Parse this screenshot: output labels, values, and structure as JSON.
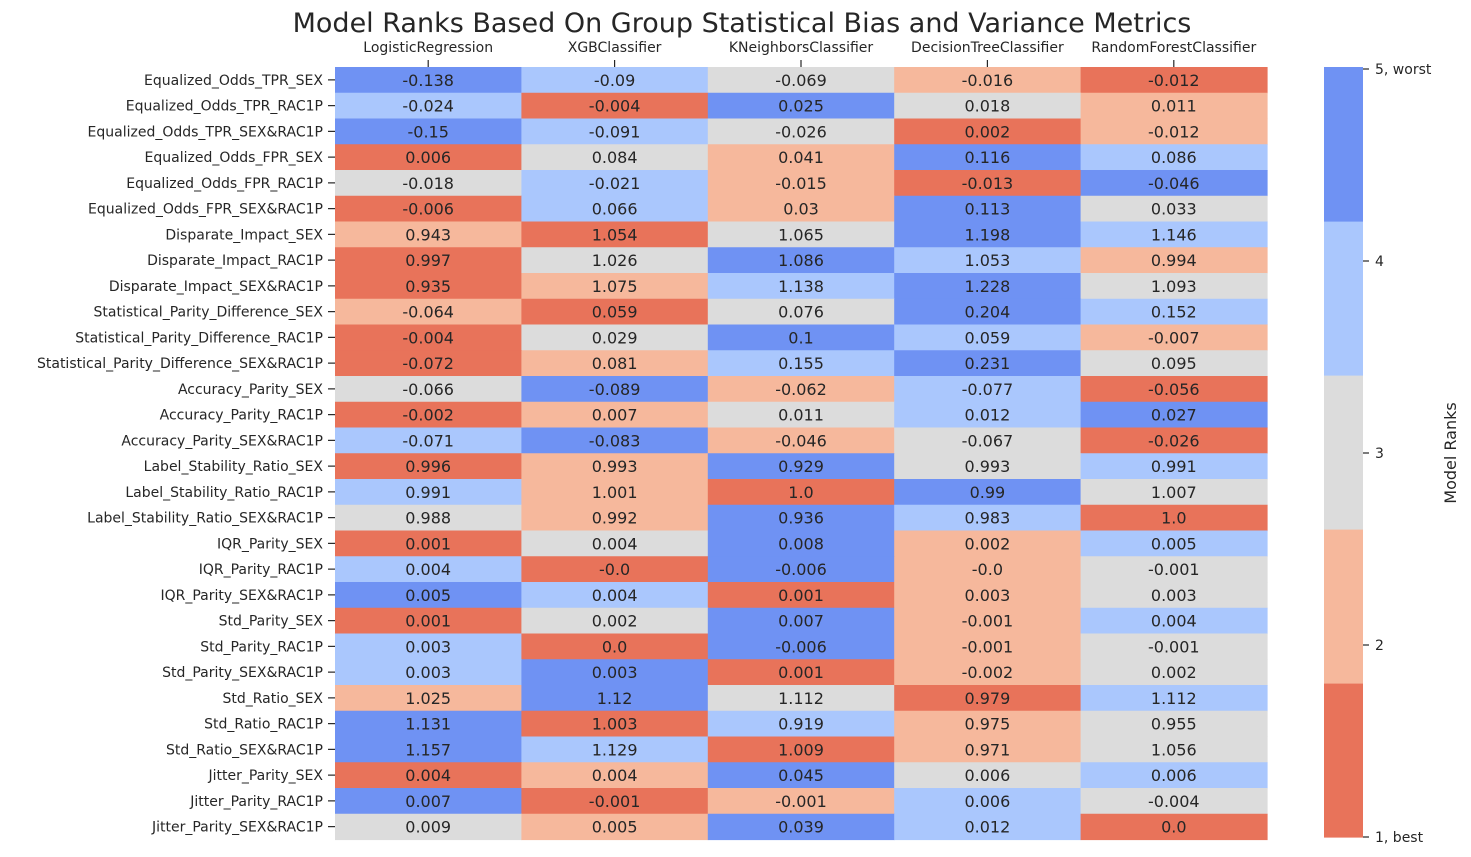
{
  "chart_data": {
    "type": "heatmap",
    "title": "Model Ranks Based On Group Statistical Bias and Variance Metrics",
    "columns": [
      "LogisticRegression",
      "XGBClassifier",
      "KNeighborsClassifier",
      "DecisionTreeClassifier",
      "RandomForestClassifier"
    ],
    "rows": [
      "Equalized_Odds_TPR_SEX",
      "Equalized_Odds_TPR_RAC1P",
      "Equalized_Odds_TPR_SEX&RAC1P",
      "Equalized_Odds_FPR_SEX",
      "Equalized_Odds_FPR_RAC1P",
      "Equalized_Odds_FPR_SEX&RAC1P",
      "Disparate_Impact_SEX",
      "Disparate_Impact_RAC1P",
      "Disparate_Impact_SEX&RAC1P",
      "Statistical_Parity_Difference_SEX",
      "Statistical_Parity_Difference_RAC1P",
      "Statistical_Parity_Difference_SEX&RAC1P",
      "Accuracy_Parity_SEX",
      "Accuracy_Parity_RAC1P",
      "Accuracy_Parity_SEX&RAC1P",
      "Label_Stability_Ratio_SEX",
      "Label_Stability_Ratio_RAC1P",
      "Label_Stability_Ratio_SEX&RAC1P",
      "IQR_Parity_SEX",
      "IQR_Parity_RAC1P",
      "IQR_Parity_SEX&RAC1P",
      "Std_Parity_SEX",
      "Std_Parity_RAC1P",
      "Std_Parity_SEX&RAC1P",
      "Std_Ratio_SEX",
      "Std_Ratio_RAC1P",
      "Std_Ratio_SEX&RAC1P",
      "Jitter_Parity_SEX",
      "Jitter_Parity_RAC1P",
      "Jitter_Parity_SEX&RAC1P"
    ],
    "values": [
      [
        "-0.138",
        "-0.09",
        "-0.069",
        "-0.016",
        "-0.012"
      ],
      [
        "-0.024",
        "-0.004",
        "0.025",
        "0.018",
        "0.011"
      ],
      [
        "-0.15",
        "-0.091",
        "-0.026",
        "0.002",
        "-0.012"
      ],
      [
        "0.006",
        "0.084",
        "0.041",
        "0.116",
        "0.086"
      ],
      [
        "-0.018",
        "-0.021",
        "-0.015",
        "-0.013",
        "-0.046"
      ],
      [
        "-0.006",
        "0.066",
        "0.03",
        "0.113",
        "0.033"
      ],
      [
        "0.943",
        "1.054",
        "1.065",
        "1.198",
        "1.146"
      ],
      [
        "0.997",
        "1.026",
        "1.086",
        "1.053",
        "0.994"
      ],
      [
        "0.935",
        "1.075",
        "1.138",
        "1.228",
        "1.093"
      ],
      [
        "-0.064",
        "0.059",
        "0.076",
        "0.204",
        "0.152"
      ],
      [
        "-0.004",
        "0.029",
        "0.1",
        "0.059",
        "-0.007"
      ],
      [
        "-0.072",
        "0.081",
        "0.155",
        "0.231",
        "0.095"
      ],
      [
        "-0.066",
        "-0.089",
        "-0.062",
        "-0.077",
        "-0.056"
      ],
      [
        "-0.002",
        "0.007",
        "0.011",
        "0.012",
        "0.027"
      ],
      [
        "-0.071",
        "-0.083",
        "-0.046",
        "-0.067",
        "-0.026"
      ],
      [
        "0.996",
        "0.993",
        "0.929",
        "0.993",
        "0.991"
      ],
      [
        "0.991",
        "1.001",
        "1.0",
        "0.99",
        "1.007"
      ],
      [
        "0.988",
        "0.992",
        "0.936",
        "0.983",
        "1.0"
      ],
      [
        "0.001",
        "0.004",
        "0.008",
        "0.002",
        "0.005"
      ],
      [
        "0.004",
        "-0.0",
        "-0.006",
        "-0.0",
        "-0.001"
      ],
      [
        "0.005",
        "0.004",
        "0.001",
        "0.003",
        "0.003"
      ],
      [
        "0.001",
        "0.002",
        "0.007",
        "-0.001",
        "0.004"
      ],
      [
        "0.003",
        "0.0",
        "-0.006",
        "-0.001",
        "-0.001"
      ],
      [
        "0.003",
        "0.003",
        "0.001",
        "-0.002",
        "0.002"
      ],
      [
        "1.025",
        "1.12",
        "1.112",
        "0.979",
        "1.112"
      ],
      [
        "1.131",
        "1.003",
        "0.919",
        "0.975",
        "0.955"
      ],
      [
        "1.157",
        "1.129",
        "1.009",
        "0.971",
        "1.056"
      ],
      [
        "0.004",
        "0.004",
        "0.045",
        "0.006",
        "0.006"
      ],
      [
        "0.007",
        "-0.001",
        "-0.001",
        "0.006",
        "-0.004"
      ],
      [
        "0.009",
        "0.005",
        "0.039",
        "0.012",
        "0.0"
      ]
    ],
    "ranks": [
      [
        5,
        4,
        3,
        2,
        1
      ],
      [
        4,
        1,
        5,
        3,
        2
      ],
      [
        5,
        4,
        3,
        1,
        2
      ],
      [
        1,
        3,
        2,
        5,
        4
      ],
      [
        3,
        4,
        2,
        1,
        5
      ],
      [
        1,
        4,
        2,
        5,
        3
      ],
      [
        2,
        1,
        3,
        5,
        4
      ],
      [
        1,
        3,
        5,
        4,
        2
      ],
      [
        1,
        2,
        4,
        5,
        3
      ],
      [
        2,
        1,
        3,
        5,
        4
      ],
      [
        1,
        3,
        5,
        4,
        2
      ],
      [
        1,
        2,
        4,
        5,
        3
      ],
      [
        3,
        5,
        2,
        4,
        1
      ],
      [
        1,
        2,
        3,
        4,
        5
      ],
      [
        4,
        5,
        2,
        3,
        1
      ],
      [
        1,
        2,
        5,
        3,
        4
      ],
      [
        4,
        2,
        1,
        5,
        3
      ],
      [
        3,
        2,
        5,
        4,
        1
      ],
      [
        1,
        3,
        5,
        2,
        4
      ],
      [
        4,
        1,
        5,
        2,
        3
      ],
      [
        5,
        4,
        1,
        2,
        3
      ],
      [
        1,
        3,
        5,
        2,
        4
      ],
      [
        4,
        1,
        5,
        2,
        3
      ],
      [
        4,
        5,
        1,
        2,
        3
      ],
      [
        2,
        5,
        3,
        1,
        4
      ],
      [
        5,
        1,
        4,
        2,
        3
      ],
      [
        5,
        4,
        1,
        2,
        3
      ],
      [
        1,
        2,
        5,
        3,
        4
      ],
      [
        5,
        1,
        2,
        4,
        3
      ],
      [
        3,
        2,
        5,
        4,
        1
      ]
    ],
    "colorbar": {
      "label": "Model Ranks",
      "ticks": [
        "1, best",
        "2",
        "3",
        "4",
        "5, worst"
      ],
      "colors": [
        "#e8735a",
        "#f6b89c",
        "#dcdcdc",
        "#aac7fd",
        "#6f92f3"
      ]
    }
  }
}
